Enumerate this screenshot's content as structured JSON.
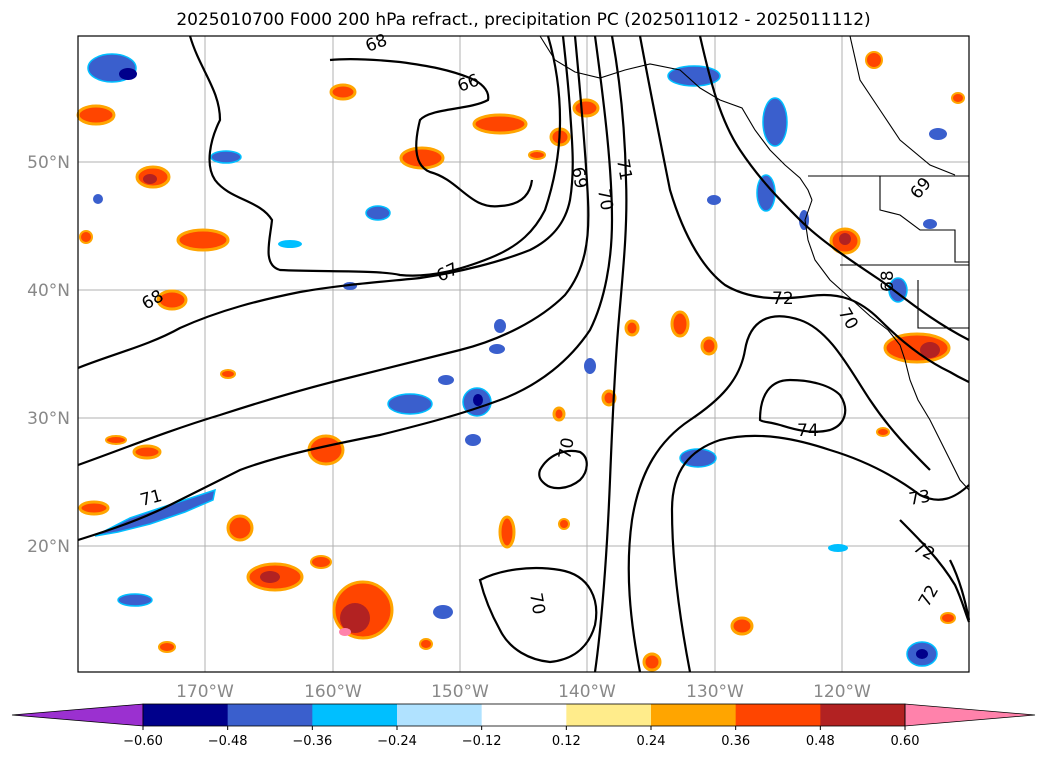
{
  "title": "2025010700 F000 200 hPa refract., precipitation PC (2025011012 - 2025011112)",
  "lat_labels": [
    "50°N",
    "40°N",
    "30°N",
    "20°N"
  ],
  "lon_labels": [
    "170°W",
    "160°W",
    "150°W",
    "140°W",
    "130°W",
    "120°W"
  ],
  "contour_labels": [
    "68",
    "66",
    "69",
    "70",
    "71",
    "67",
    "72",
    "70",
    "68",
    "69",
    "74",
    "73",
    "72",
    "72",
    "70",
    "71",
    "70",
    "68"
  ],
  "colorbar": {
    "ticks": [
      "−0.60",
      "−0.48",
      "−0.36",
      "−0.24",
      "−0.12",
      "0.12",
      "0.24",
      "0.36",
      "0.48",
      "0.60"
    ],
    "colors": [
      "#9b30d0",
      "#00008b",
      "#3a5fcd",
      "#00bfff",
      "#b0e2ff",
      "#ffffff",
      "#ffec8b",
      "#ffa500",
      "#ff4500",
      "#b22222",
      "#ff82ab"
    ]
  },
  "colors": {
    "neg_strong": "#00008b",
    "neg_mid": "#3a5fcd",
    "neg_light": "#00bfff",
    "pos_light": "#ffa500",
    "pos_mid": "#ff4500",
    "pos_strong": "#b22222",
    "pos_max": "#ff82ab"
  }
}
